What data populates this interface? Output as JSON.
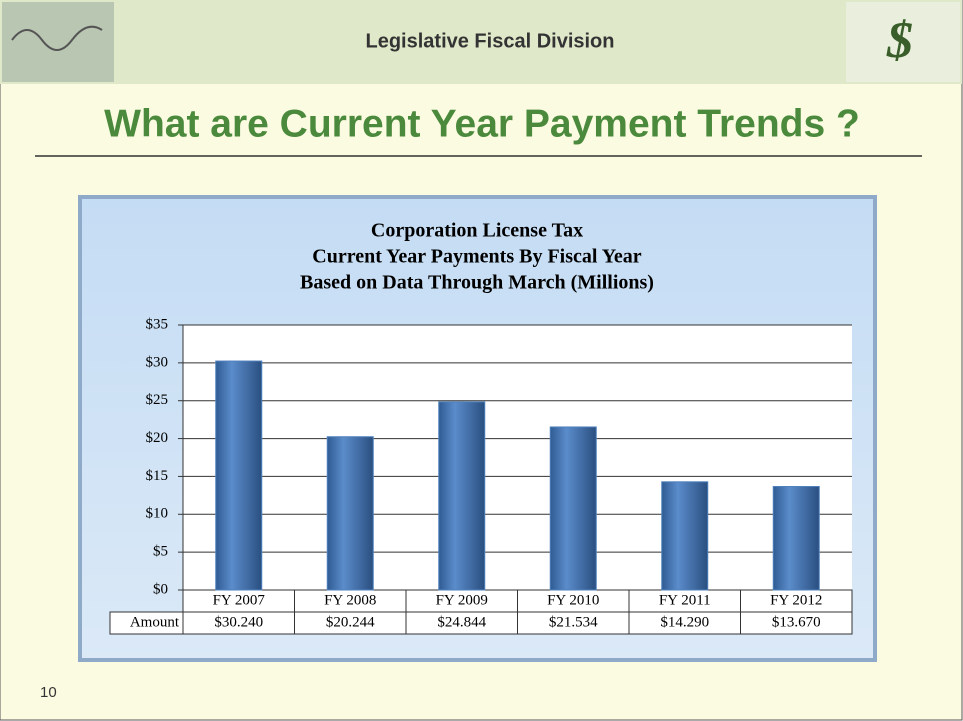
{
  "header": {
    "title": "Legislative Fiscal Division"
  },
  "slide_title": "What are Current Year Payment Trends ?",
  "page_number": "10",
  "chart_data": {
    "type": "bar",
    "title": [
      "Corporation License Tax",
      "Current Year Payments By Fiscal Year",
      "Based on Data Through March (Millions)"
    ],
    "categories": [
      "FY 2007",
      "FY 2008",
      "FY 2009",
      "FY 2010",
      "FY 2011",
      "FY 2012"
    ],
    "series": [
      {
        "name": "Amount",
        "color": "#4f81bd",
        "values": [
          30.24,
          20.244,
          24.844,
          21.534,
          14.29,
          13.67
        ],
        "value_labels": [
          "$30.240",
          "$20.244",
          "$24.844",
          "$21.534",
          "$14.290",
          "$13.670"
        ]
      }
    ],
    "ylim": [
      0,
      35
    ],
    "yticks": [
      {
        "value": 0,
        "label": "$0"
      },
      {
        "value": 5,
        "label": "$5"
      },
      {
        "value": 10,
        "label": "$10"
      },
      {
        "value": 15,
        "label": "$15"
      },
      {
        "value": 20,
        "label": "$20"
      },
      {
        "value": 25,
        "label": "$25"
      },
      {
        "value": 30,
        "label": "$30"
      },
      {
        "value": 35,
        "label": "$35"
      }
    ],
    "grid": true
  }
}
